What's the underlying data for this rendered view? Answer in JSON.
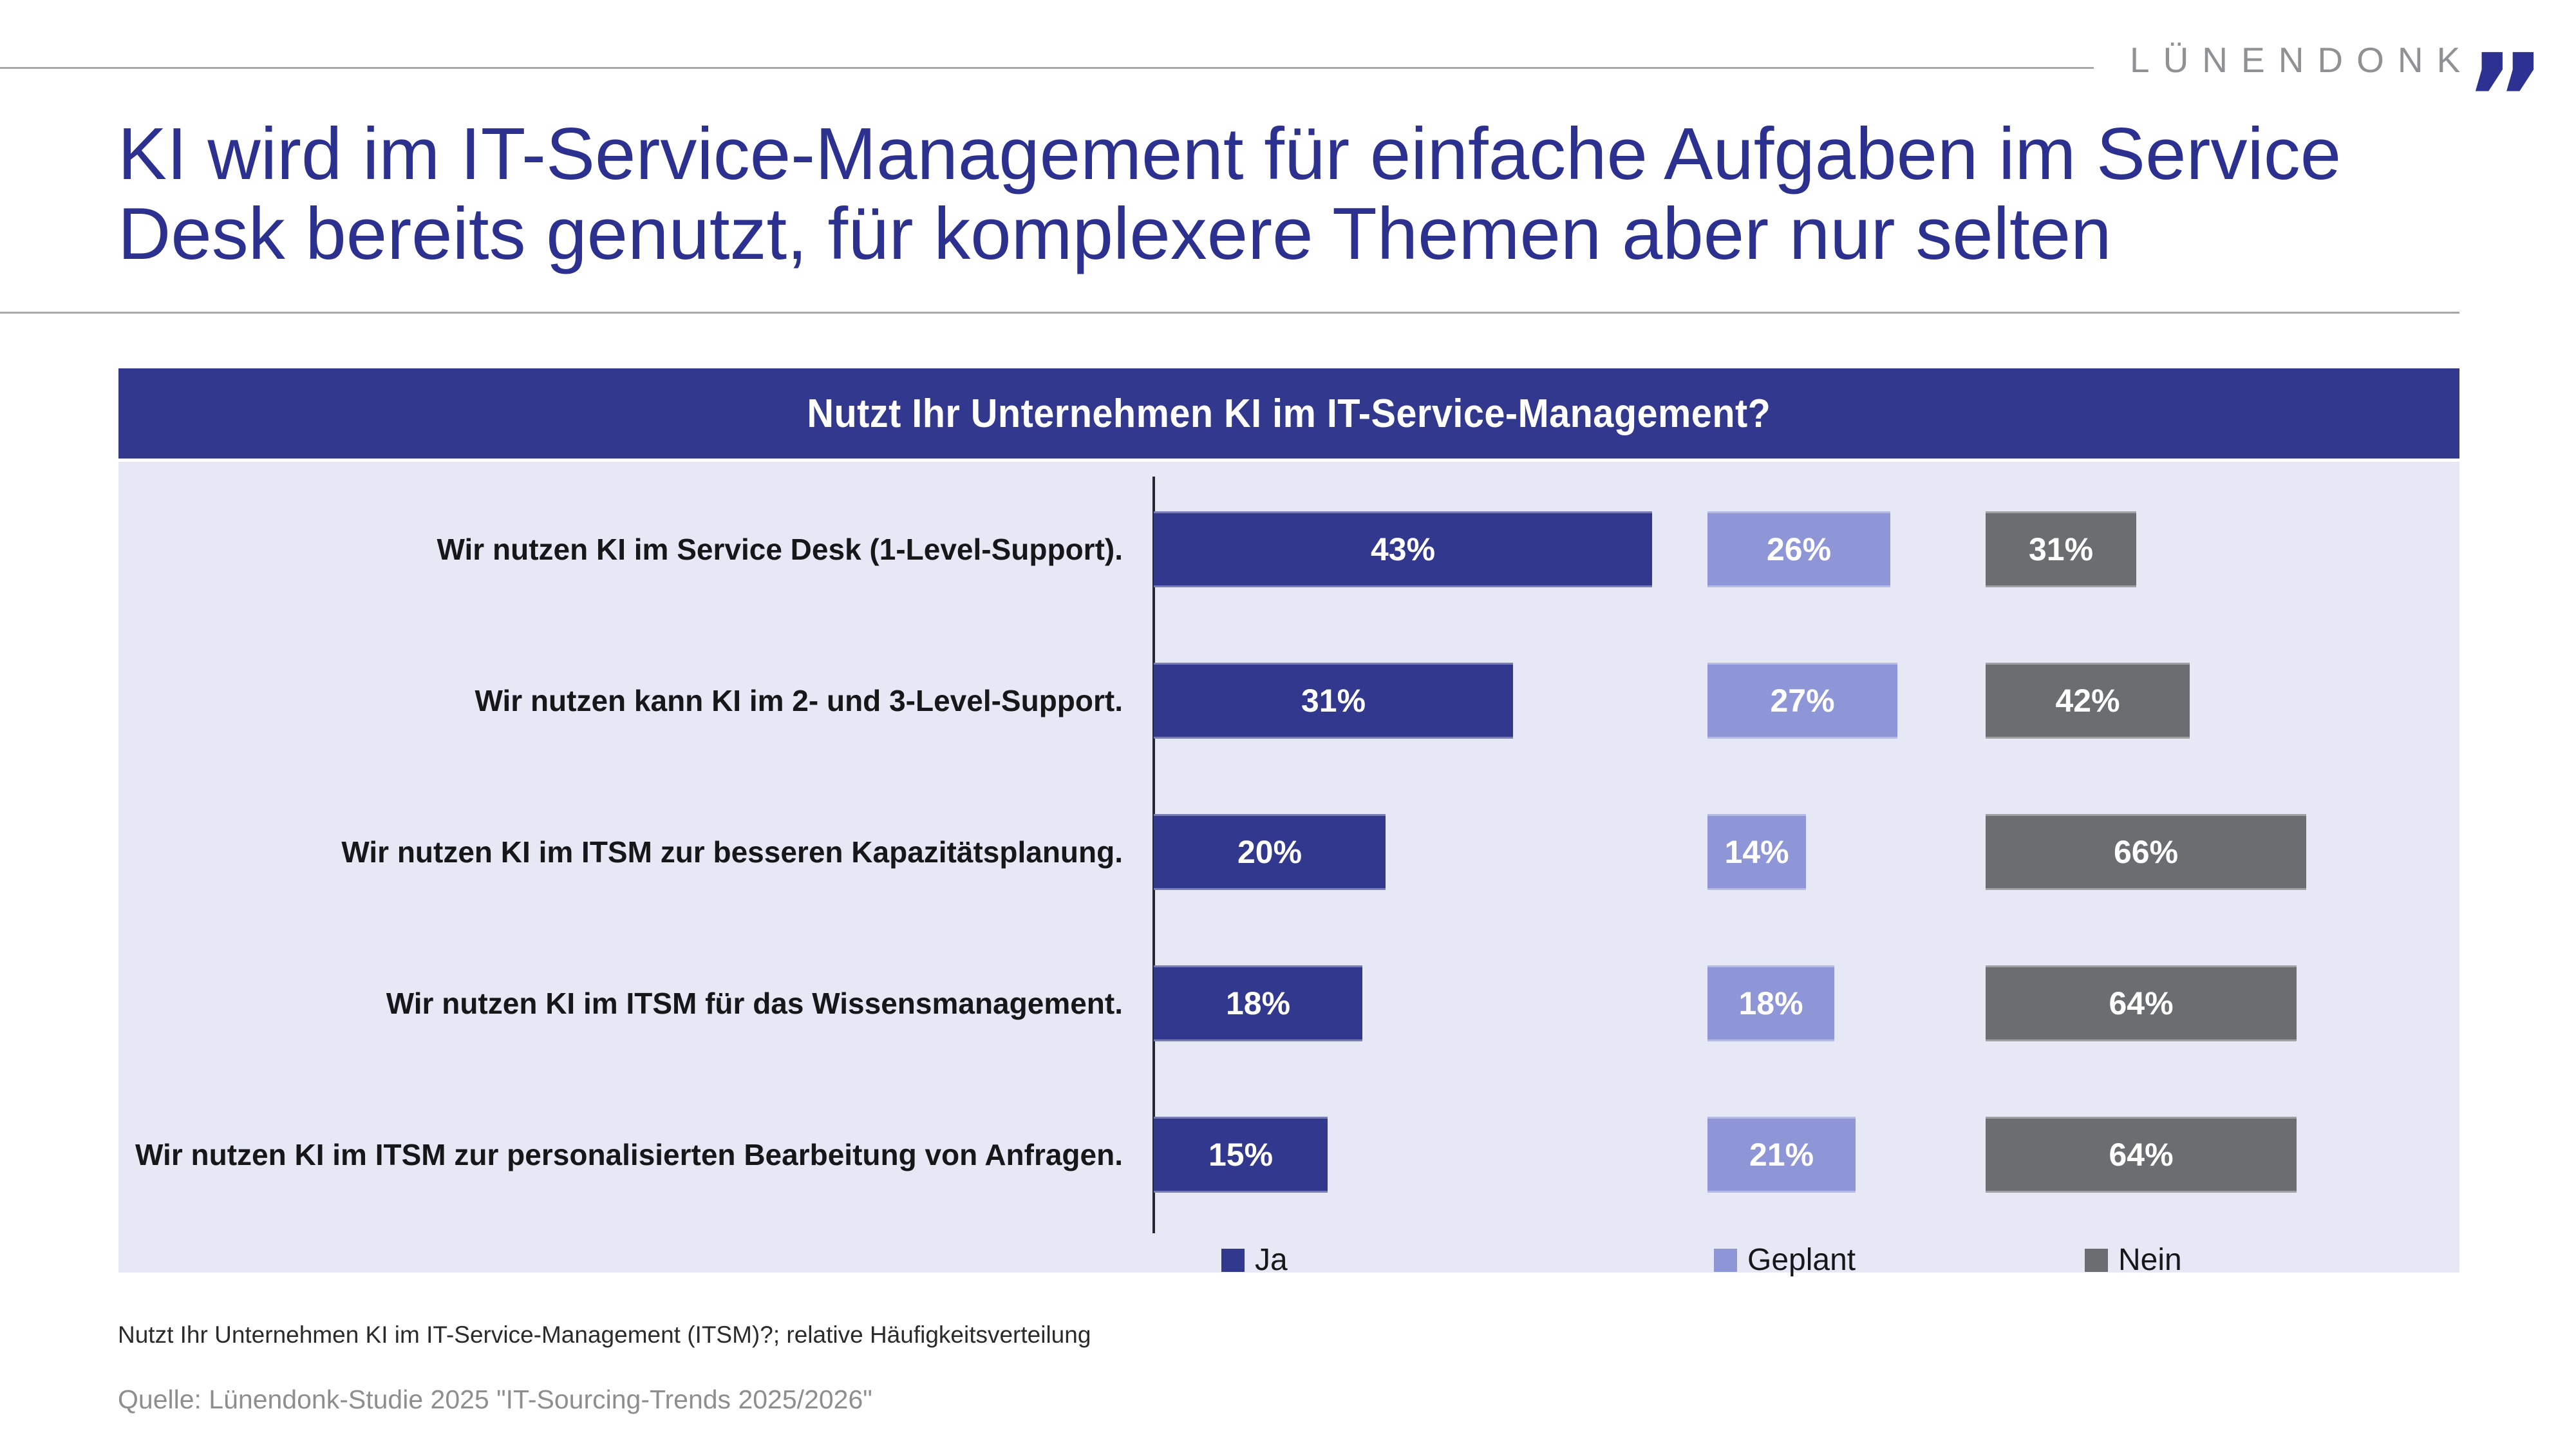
{
  "logo": {
    "text": "LÜNENDONK",
    "quotes": "”"
  },
  "title": "KI wird im IT-Service-Management für einfache Aufgaben im Service Desk bereits genutzt, für komplexere Themen aber nur selten",
  "chart_data": {
    "type": "bar",
    "orientation": "horizontal",
    "title": "Nutzt Ihr Unternehmen KI im IT-Service-Management?",
    "categories": [
      "Wir nutzen KI im Service Desk (1-Level-Support).",
      "Wir nutzen kann KI im 2- und 3-Level-Support.",
      "Wir nutzen KI im ITSM zur besseren Kapazitätsplanung.",
      "Wir nutzen KI im ITSM für das Wissensmanagement.",
      "Wir nutzen KI im ITSM zur personalisierten Bearbeitung von Anfragen."
    ],
    "series": [
      {
        "name": "Ja",
        "color": "#32388d",
        "values": [
          43,
          31,
          20,
          18,
          15
        ]
      },
      {
        "name": "Geplant",
        "color": "#8e96d8",
        "values": [
          26,
          27,
          14,
          18,
          21
        ]
      },
      {
        "name": "Nein",
        "color": "#6b6e71",
        "values": [
          31,
          42,
          66,
          64,
          64
        ]
      }
    ],
    "value_suffix": "%",
    "legend": [
      "Ja",
      "Geplant",
      "Nein"
    ],
    "legend_position": "bottom",
    "grid": false
  },
  "footnote": "Nutzt Ihr Unternehmen KI im IT-Service-Management (ITSM)?; relative Häufigkeitsverteilung",
  "source": "Quelle: Lünendonk-Studie 2025 \"IT-Sourcing-Trends 2025/2026\"",
  "colors": {
    "accent_blue": "#2c3192",
    "header_bg": "#32388d",
    "panel_bg": "#e6e8f5",
    "logo_gray": "#8f9194"
  }
}
